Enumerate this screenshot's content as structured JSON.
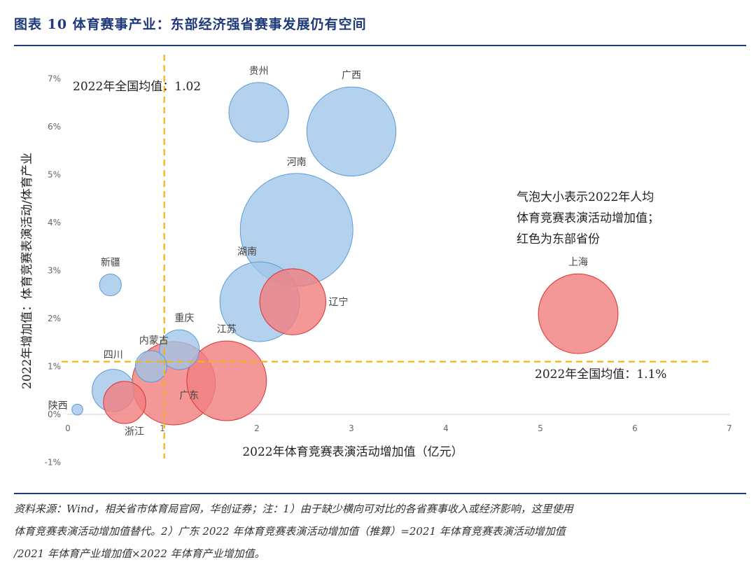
{
  "header": {
    "title": "图表 10  体育赛事产业：东部经济强省赛事发展仍有空间"
  },
  "chart_data": {
    "type": "bubble",
    "title": "",
    "xlabel": "2022年体育竞赛表演活动增加值（亿元）",
    "ylabel": "2022年增加值：体育竞赛表演活动/体育产业",
    "xlim": [
      0,
      7
    ],
    "ylim": [
      -1,
      7
    ],
    "x_ticks": [
      "0",
      "1",
      "2",
      "3",
      "4",
      "5",
      "6",
      "7"
    ],
    "y_ticks": [
      "-1%",
      "0%",
      "1%",
      "2%",
      "3%",
      "4%",
      "5%",
      "6%",
      "7%"
    ],
    "colors": {
      "default": "#9fc5e8",
      "default_edge": "#5b9bd5",
      "east": "#f08080",
      "east_edge": "#e03030",
      "ref": "#f5b31a"
    },
    "series": [
      {
        "name": "贵州",
        "x": 2.02,
        "y": 6.3,
        "size": 0.9,
        "east": false
      },
      {
        "name": "广西",
        "x": 3.0,
        "y": 5.9,
        "size": 2.0,
        "east": false
      },
      {
        "name": "河南",
        "x": 2.42,
        "y": 3.85,
        "size": 3.2,
        "east": false
      },
      {
        "name": "新疆",
        "x": 0.45,
        "y": 2.7,
        "size": 0.12,
        "east": false
      },
      {
        "name": "湖南",
        "x": 2.03,
        "y": 2.35,
        "size": 1.6,
        "east": false
      },
      {
        "name": "辽宁",
        "x": 2.38,
        "y": 2.35,
        "size": 1.1,
        "east": true
      },
      {
        "name": "上海",
        "x": 5.4,
        "y": 2.1,
        "size": 1.6,
        "east": true
      },
      {
        "name": "重庆",
        "x": 1.18,
        "y": 1.35,
        "size": 0.4,
        "east": false
      },
      {
        "name": "内蒙古",
        "x": 0.88,
        "y": 1.0,
        "size": 0.25,
        "east": false
      },
      {
        "name": "四川",
        "x": 0.48,
        "y": 0.5,
        "size": 0.45,
        "east": false
      },
      {
        "name": "陕西",
        "x": 0.1,
        "y": 0.1,
        "size": 0.03,
        "east": false
      },
      {
        "name": "浙江",
        "x": 0.6,
        "y": 0.25,
        "size": 0.45,
        "east": true
      },
      {
        "name": "广东",
        "x": 1.12,
        "y": 0.65,
        "size": 1.75,
        "east": true
      },
      {
        "name": "江苏",
        "x": 1.68,
        "y": 0.7,
        "size": 1.6,
        "east": true
      }
    ],
    "reference_lines": [
      {
        "axis": "x",
        "value": 1.02,
        "label": "2022年全国均值：1.02"
      },
      {
        "axis": "y",
        "value": 1.1,
        "label": "2022年全国均值：1.1%"
      }
    ],
    "annotation": [
      "气泡大小表示2022年人均",
      "体育竞赛表演活动增加值；",
      "红色为东部省份"
    ]
  },
  "footer": {
    "source_lines": [
      "资料来源：Wind，相关省市体育局官网，华创证券；注：1）由于缺少横向可对比的各省赛事收入或经济影响，这里使用",
      "体育竞赛表演活动增加值替代。2）广东 2022 年体育竞赛表演活动增加值（推算）=2021 年体育竞赛表演活动增加值",
      "/2021 年体育产业增加值×2022 年体育产业增加值。"
    ]
  }
}
